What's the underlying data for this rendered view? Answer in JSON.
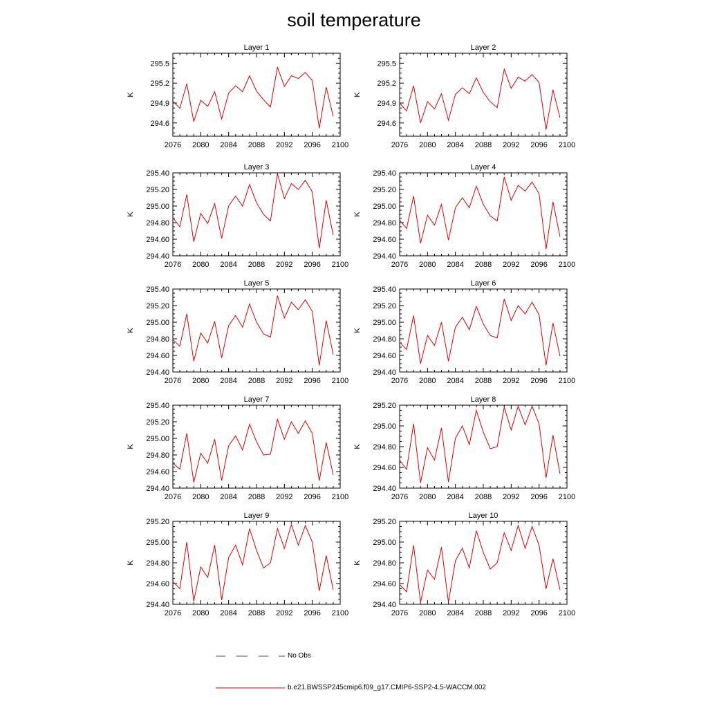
{
  "title": "soil temperature",
  "legend": {
    "obs_label": "No Obs",
    "model_label": "b.e21.BWSSP245cmip6.f09_g17.CMIP6-SSP2-4.5-WACCM.002",
    "obs_color": "#3b4cc0",
    "model_color": "#e00000"
  },
  "chart_data": [
    {
      "type": "line",
      "title": "Layer 1",
      "ylabel": "K",
      "xlim": [
        2076,
        2100
      ],
      "ylim": [
        294.4,
        295.65
      ],
      "xticks": [
        2076,
        2080,
        2084,
        2088,
        2092,
        2096,
        2100
      ],
      "yticks": [
        294.6,
        294.9,
        295.2,
        295.5
      ],
      "ytick_decimals": 1,
      "x": [
        2076,
        2077,
        2078,
        2079,
        2080,
        2081,
        2082,
        2083,
        2084,
        2085,
        2086,
        2087,
        2088,
        2089,
        2090,
        2091,
        2092,
        2093,
        2094,
        2095,
        2096,
        2097,
        2098,
        2099
      ],
      "series": [
        {
          "values": [
            294.93,
            294.82,
            295.19,
            294.62,
            294.94,
            294.85,
            295.07,
            294.66,
            295.05,
            295.16,
            295.07,
            295.31,
            295.08,
            294.95,
            294.84,
            295.44,
            295.15,
            295.31,
            295.27,
            295.36,
            295.24,
            294.52,
            295.14,
            294.7
          ]
        }
      ]
    },
    {
      "type": "line",
      "title": "Layer 2",
      "ylabel": "K",
      "xlim": [
        2076,
        2100
      ],
      "ylim": [
        294.4,
        295.65
      ],
      "xticks": [
        2076,
        2080,
        2084,
        2088,
        2092,
        2096,
        2100
      ],
      "yticks": [
        294.6,
        294.9,
        295.2,
        295.5
      ],
      "ytick_decimals": 1,
      "x": [
        2076,
        2077,
        2078,
        2079,
        2080,
        2081,
        2082,
        2083,
        2084,
        2085,
        2086,
        2087,
        2088,
        2089,
        2090,
        2091,
        2092,
        2093,
        2094,
        2095,
        2096,
        2097,
        2098,
        2099
      ],
      "series": [
        {
          "values": [
            294.9,
            294.78,
            295.16,
            294.6,
            294.92,
            294.81,
            295.04,
            294.64,
            295.03,
            295.13,
            295.04,
            295.28,
            295.06,
            294.92,
            294.83,
            295.41,
            295.12,
            295.29,
            295.23,
            295.33,
            295.21,
            294.5,
            295.1,
            294.68
          ]
        }
      ]
    },
    {
      "type": "line",
      "title": "Layer 3",
      "ylabel": "K",
      "xlim": [
        2076,
        2100
      ],
      "ylim": [
        294.4,
        295.4
      ],
      "xticks": [
        2076,
        2080,
        2084,
        2088,
        2092,
        2096,
        2100
      ],
      "yticks": [
        294.4,
        294.6,
        294.8,
        295.0,
        295.2,
        295.4
      ],
      "ytick_decimals": 2,
      "x": [
        2076,
        2077,
        2078,
        2079,
        2080,
        2081,
        2082,
        2083,
        2084,
        2085,
        2086,
        2087,
        2088,
        2089,
        2090,
        2091,
        2092,
        2093,
        2094,
        2095,
        2096,
        2097,
        2098,
        2099
      ],
      "series": [
        {
          "values": [
            294.86,
            294.75,
            295.14,
            294.57,
            294.91,
            294.79,
            295.03,
            294.61,
            295.0,
            295.12,
            295.0,
            295.26,
            295.04,
            294.9,
            294.82,
            295.39,
            295.09,
            295.27,
            295.2,
            295.31,
            295.17,
            294.49,
            295.07,
            294.65
          ]
        }
      ]
    },
    {
      "type": "line",
      "title": "Layer 4",
      "ylabel": "K",
      "xlim": [
        2076,
        2100
      ],
      "ylim": [
        294.4,
        295.4
      ],
      "xticks": [
        2076,
        2080,
        2084,
        2088,
        2092,
        2096,
        2100
      ],
      "yticks": [
        294.4,
        294.6,
        294.8,
        295.0,
        295.2,
        295.4
      ],
      "ytick_decimals": 2,
      "x": [
        2076,
        2077,
        2078,
        2079,
        2080,
        2081,
        2082,
        2083,
        2084,
        2085,
        2086,
        2087,
        2088,
        2089,
        2090,
        2091,
        2092,
        2093,
        2094,
        2095,
        2096,
        2097,
        2098,
        2099
      ],
      "series": [
        {
          "values": [
            294.83,
            294.73,
            295.12,
            294.55,
            294.89,
            294.77,
            295.02,
            294.59,
            294.98,
            295.1,
            294.98,
            295.24,
            295.02,
            294.88,
            294.82,
            295.35,
            295.07,
            295.25,
            295.18,
            295.29,
            295.15,
            294.48,
            295.05,
            294.63
          ]
        }
      ]
    },
    {
      "type": "line",
      "title": "Layer 5",
      "ylabel": "K",
      "xlim": [
        2076,
        2100
      ],
      "ylim": [
        294.4,
        295.4
      ],
      "xticks": [
        2076,
        2080,
        2084,
        2088,
        2092,
        2096,
        2100
      ],
      "yticks": [
        294.4,
        294.6,
        294.8,
        295.0,
        295.2,
        295.4
      ],
      "ytick_decimals": 2,
      "x": [
        2076,
        2077,
        2078,
        2079,
        2080,
        2081,
        2082,
        2083,
        2084,
        2085,
        2086,
        2087,
        2088,
        2089,
        2090,
        2091,
        2092,
        2093,
        2094,
        2095,
        2096,
        2097,
        2098,
        2099
      ],
      "series": [
        {
          "values": [
            294.79,
            294.71,
            295.1,
            294.53,
            294.87,
            294.75,
            295.01,
            294.57,
            294.96,
            295.08,
            294.94,
            295.22,
            295.0,
            294.86,
            294.82,
            295.32,
            295.05,
            295.24,
            295.15,
            295.27,
            295.13,
            294.48,
            295.02,
            294.61
          ]
        }
      ]
    },
    {
      "type": "line",
      "title": "Layer 6",
      "ylabel": "K",
      "xlim": [
        2076,
        2100
      ],
      "ylim": [
        294.4,
        295.4
      ],
      "xticks": [
        2076,
        2080,
        2084,
        2088,
        2092,
        2096,
        2100
      ],
      "yticks": [
        294.4,
        294.6,
        294.8,
        295.0,
        295.2,
        295.4
      ],
      "ytick_decimals": 2,
      "x": [
        2076,
        2077,
        2078,
        2079,
        2080,
        2081,
        2082,
        2083,
        2084,
        2085,
        2086,
        2087,
        2088,
        2089,
        2090,
        2091,
        2092,
        2093,
        2094,
        2095,
        2096,
        2097,
        2098,
        2099
      ],
      "series": [
        {
          "values": [
            294.76,
            294.67,
            295.08,
            294.5,
            294.84,
            294.72,
            295.0,
            294.53,
            294.94,
            295.06,
            294.91,
            295.19,
            294.98,
            294.84,
            294.81,
            295.28,
            295.02,
            295.2,
            295.1,
            295.24,
            295.09,
            294.48,
            294.99,
            294.59
          ]
        }
      ]
    },
    {
      "type": "line",
      "title": "Layer 7",
      "ylabel": "K",
      "xlim": [
        2076,
        2100
      ],
      "ylim": [
        294.4,
        295.4
      ],
      "xticks": [
        2076,
        2080,
        2084,
        2088,
        2092,
        2096,
        2100
      ],
      "yticks": [
        294.4,
        294.6,
        294.8,
        295.0,
        295.2,
        295.4
      ],
      "ytick_decimals": 2,
      "x": [
        2076,
        2077,
        2078,
        2079,
        2080,
        2081,
        2082,
        2083,
        2084,
        2085,
        2086,
        2087,
        2088,
        2089,
        2090,
        2091,
        2092,
        2093,
        2094,
        2095,
        2096,
        2097,
        2098,
        2099
      ],
      "series": [
        {
          "values": [
            294.7,
            294.63,
            295.06,
            294.47,
            294.82,
            294.7,
            294.99,
            294.49,
            294.91,
            295.03,
            294.86,
            295.17,
            294.96,
            294.8,
            294.81,
            295.23,
            294.99,
            295.2,
            295.06,
            295.21,
            295.06,
            294.49,
            294.95,
            294.56
          ]
        }
      ]
    },
    {
      "type": "line",
      "title": "Layer 8",
      "ylabel": "K",
      "xlim": [
        2076,
        2100
      ],
      "ylim": [
        294.4,
        295.2
      ],
      "xticks": [
        2076,
        2080,
        2084,
        2088,
        2092,
        2096,
        2100
      ],
      "yticks": [
        294.4,
        294.6,
        294.8,
        295.0,
        295.2
      ],
      "ytick_decimals": 2,
      "x": [
        2076,
        2077,
        2078,
        2079,
        2080,
        2081,
        2082,
        2083,
        2084,
        2085,
        2086,
        2087,
        2088,
        2089,
        2090,
        2091,
        2092,
        2093,
        2094,
        2095,
        2096,
        2097,
        2098,
        2099
      ],
      "series": [
        {
          "values": [
            294.67,
            294.58,
            295.02,
            294.45,
            294.79,
            294.67,
            294.98,
            294.46,
            294.88,
            295.0,
            294.82,
            295.15,
            294.94,
            294.78,
            294.8,
            295.18,
            294.96,
            295.19,
            295.01,
            295.19,
            295.02,
            294.5,
            294.91,
            294.54
          ]
        }
      ]
    },
    {
      "type": "line",
      "title": "Layer 9",
      "ylabel": "K",
      "xlim": [
        2076,
        2100
      ],
      "ylim": [
        294.4,
        295.2
      ],
      "xticks": [
        2076,
        2080,
        2084,
        2088,
        2092,
        2096,
        2100
      ],
      "yticks": [
        294.4,
        294.6,
        294.8,
        295.0,
        295.2
      ],
      "ytick_decimals": 2,
      "x": [
        2076,
        2077,
        2078,
        2079,
        2080,
        2081,
        2082,
        2083,
        2084,
        2085,
        2086,
        2087,
        2088,
        2089,
        2090,
        2091,
        2092,
        2093,
        2094,
        2095,
        2096,
        2097,
        2098,
        2099
      ],
      "series": [
        {
          "values": [
            294.62,
            294.55,
            295.0,
            294.43,
            294.76,
            294.66,
            294.97,
            294.44,
            294.85,
            294.97,
            294.78,
            295.13,
            294.92,
            294.75,
            294.8,
            295.13,
            294.94,
            295.17,
            294.97,
            295.16,
            295.0,
            294.53,
            294.87,
            294.54
          ]
        }
      ]
    },
    {
      "type": "line",
      "title": "Layer 10",
      "ylabel": "K",
      "xlim": [
        2076,
        2100
      ],
      "ylim": [
        294.4,
        295.2
      ],
      "xticks": [
        2076,
        2080,
        2084,
        2088,
        2092,
        2096,
        2100
      ],
      "yticks": [
        294.4,
        294.6,
        294.8,
        295.0,
        295.2
      ],
      "ytick_decimals": 2,
      "x": [
        2076,
        2077,
        2078,
        2079,
        2080,
        2081,
        2082,
        2083,
        2084,
        2085,
        2086,
        2087,
        2088,
        2089,
        2090,
        2091,
        2092,
        2093,
        2094,
        2095,
        2096,
        2097,
        2098,
        2099
      ],
      "series": [
        {
          "values": [
            294.59,
            294.52,
            294.97,
            294.42,
            294.73,
            294.64,
            294.95,
            294.42,
            294.82,
            294.94,
            294.75,
            295.11,
            294.9,
            294.74,
            294.8,
            295.09,
            294.92,
            295.16,
            294.94,
            295.15,
            294.97,
            294.55,
            294.84,
            294.54
          ]
        }
      ]
    }
  ]
}
